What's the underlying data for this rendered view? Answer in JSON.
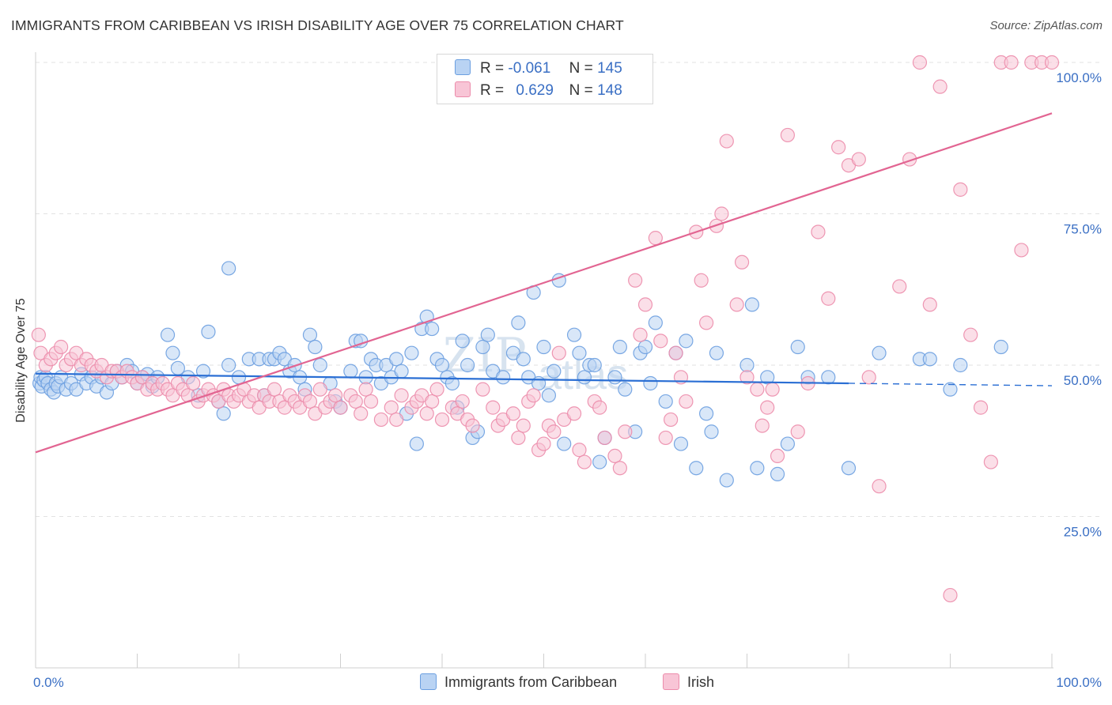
{
  "title": "IMMIGRANTS FROM CARIBBEAN VS IRISH DISABILITY AGE OVER 75 CORRELATION CHART",
  "source": "Source: ZipAtlas.com",
  "watermark": {
    "part1": "ZIP",
    "part2": "atlas"
  },
  "legend": {
    "rows": [
      {
        "r_label": "R =",
        "r_value": "-0.061",
        "n_label": "N =",
        "n_value": "145"
      },
      {
        "r_label": "R =",
        "r_value": "0.629",
        "n_label": "N =",
        "n_value": "148"
      }
    ]
  },
  "colors": {
    "blue_fill": "#b9d3f3",
    "blue_stroke": "#6b9fe0",
    "blue_line": "#2b6fd4",
    "pink_fill": "#f8c5d6",
    "pink_stroke": "#ec8cab",
    "pink_line": "#e26592",
    "grid": "#e2e2e2",
    "axis_text": "#3a6fc4"
  },
  "chart_data": {
    "type": "scatter",
    "title": "IMMIGRANTS FROM CARIBBEAN VS IRISH DISABILITY AGE OVER 75 CORRELATION CHART",
    "xlabel": "",
    "ylabel": "Disability Age Over 75",
    "xlim": [
      0,
      100
    ],
    "ylim": [
      0,
      100
    ],
    "x_tick_labels": [
      "0.0%",
      "100.0%"
    ],
    "y_ticks": [
      25,
      50,
      75,
      100
    ],
    "y_tick_labels": [
      "25.0%",
      "50.0%",
      "75.0%",
      "100.0%"
    ],
    "grid": true,
    "legend_position": "top-center",
    "series": [
      {
        "name": "Immigrants from Caribbean",
        "r": -0.061,
        "n": 145,
        "trend": {
          "x": [
            0,
            80
          ],
          "y": [
            48.6,
            47.0
          ],
          "dashed_to_x": 100,
          "dashed_end_y": 46.6
        },
        "points": [
          [
            0.4,
            47
          ],
          [
            0.5,
            48
          ],
          [
            0.6,
            46.5
          ],
          [
            0.8,
            47.5
          ],
          [
            1,
            48
          ],
          [
            1.2,
            47
          ],
          [
            1.5,
            46
          ],
          [
            1.8,
            45.5
          ],
          [
            2,
            47
          ],
          [
            2.2,
            46.5
          ],
          [
            2.5,
            48
          ],
          [
            3,
            46
          ],
          [
            3.5,
            47
          ],
          [
            4,
            46
          ],
          [
            4.5,
            48.5
          ],
          [
            5,
            47
          ],
          [
            5.5,
            48
          ],
          [
            6,
            46.5
          ],
          [
            6.5,
            48
          ],
          [
            7,
            45.5
          ],
          [
            7.5,
            47
          ],
          [
            8,
            49
          ],
          [
            8.5,
            48
          ],
          [
            9,
            50
          ],
          [
            9.5,
            49
          ],
          [
            10,
            47
          ],
          [
            10.5,
            48
          ],
          [
            11,
            48.5
          ],
          [
            11.5,
            46.5
          ],
          [
            12,
            48
          ],
          [
            13,
            55
          ],
          [
            13.5,
            52
          ],
          [
            14,
            49.5
          ],
          [
            15,
            48
          ],
          [
            16,
            45
          ],
          [
            16.5,
            49
          ],
          [
            17,
            55.5
          ],
          [
            18,
            44
          ],
          [
            18.5,
            42
          ],
          [
            19,
            50
          ],
          [
            19,
            66
          ],
          [
            20,
            48
          ],
          [
            21,
            51
          ],
          [
            22,
            51
          ],
          [
            22.5,
            45
          ],
          [
            23,
            51
          ],
          [
            23.5,
            51
          ],
          [
            24,
            52
          ],
          [
            24.5,
            51
          ],
          [
            25,
            49
          ],
          [
            25.5,
            50
          ],
          [
            26,
            48
          ],
          [
            26.5,
            46
          ],
          [
            27,
            55
          ],
          [
            27.5,
            53
          ],
          [
            28,
            50
          ],
          [
            29,
            47
          ],
          [
            29.5,
            44
          ],
          [
            30,
            43
          ],
          [
            31,
            49
          ],
          [
            31.5,
            54
          ],
          [
            32,
            54
          ],
          [
            32.5,
            48
          ],
          [
            33,
            51
          ],
          [
            33.5,
            50
          ],
          [
            34,
            47
          ],
          [
            34.5,
            50
          ],
          [
            35,
            48
          ],
          [
            35.5,
            51
          ],
          [
            36,
            49
          ],
          [
            36.5,
            42
          ],
          [
            37,
            52
          ],
          [
            37.5,
            37
          ],
          [
            38,
            56
          ],
          [
            38.5,
            58
          ],
          [
            39,
            56
          ],
          [
            39.5,
            51
          ],
          [
            40,
            50
          ],
          [
            40.5,
            48
          ],
          [
            41,
            47
          ],
          [
            41.5,
            43
          ],
          [
            42,
            54
          ],
          [
            42.5,
            50
          ],
          [
            43,
            38
          ],
          [
            43.5,
            39
          ],
          [
            44,
            53
          ],
          [
            44.5,
            55
          ],
          [
            45,
            49
          ],
          [
            46,
            48
          ],
          [
            47,
            52
          ],
          [
            47.5,
            57
          ],
          [
            48,
            51
          ],
          [
            48.5,
            48
          ],
          [
            49,
            62
          ],
          [
            49.5,
            47
          ],
          [
            50,
            53
          ],
          [
            50.5,
            45
          ],
          [
            51,
            49
          ],
          [
            51.5,
            64
          ],
          [
            52,
            37
          ],
          [
            53,
            55
          ],
          [
            53.5,
            52
          ],
          [
            54,
            48
          ],
          [
            54.5,
            50
          ],
          [
            55,
            50
          ],
          [
            55.5,
            34
          ],
          [
            56,
            38
          ],
          [
            57,
            48
          ],
          [
            57.5,
            53
          ],
          [
            58,
            46
          ],
          [
            59,
            39
          ],
          [
            59.5,
            52
          ],
          [
            60,
            53
          ],
          [
            60.5,
            47
          ],
          [
            61,
            57
          ],
          [
            62,
            44
          ],
          [
            63,
            52
          ],
          [
            63.5,
            37
          ],
          [
            64,
            54
          ],
          [
            65,
            33
          ],
          [
            66,
            42
          ],
          [
            66.5,
            39
          ],
          [
            67,
            52
          ],
          [
            68,
            31
          ],
          [
            70,
            50
          ],
          [
            70.5,
            60
          ],
          [
            71,
            33
          ],
          [
            72,
            48
          ],
          [
            73,
            32
          ],
          [
            74,
            37
          ],
          [
            75,
            53
          ],
          [
            76,
            48
          ],
          [
            78,
            48
          ],
          [
            80,
            33
          ],
          [
            83,
            52
          ],
          [
            87,
            51
          ],
          [
            88,
            51
          ],
          [
            90,
            46
          ],
          [
            91,
            50
          ],
          [
            95,
            53
          ]
        ]
      },
      {
        "name": "Irish",
        "r": 0.629,
        "n": 148,
        "trend": {
          "x": [
            0,
            100
          ],
          "y": [
            35.6,
            91.6
          ]
        },
        "points": [
          [
            0.3,
            55
          ],
          [
            0.5,
            52
          ],
          [
            1,
            50
          ],
          [
            1.5,
            51
          ],
          [
            2,
            52
          ],
          [
            2.5,
            53
          ],
          [
            3,
            50
          ],
          [
            3.5,
            51
          ],
          [
            4,
            52
          ],
          [
            4.5,
            50
          ],
          [
            5,
            51
          ],
          [
            5.5,
            50
          ],
          [
            6,
            49
          ],
          [
            6.5,
            50
          ],
          [
            7,
            48
          ],
          [
            7.5,
            49
          ],
          [
            8,
            49
          ],
          [
            8.5,
            48
          ],
          [
            9,
            49
          ],
          [
            9.5,
            48
          ],
          [
            10,
            47
          ],
          [
            10.5,
            48
          ],
          [
            11,
            46
          ],
          [
            11.5,
            47
          ],
          [
            12,
            46
          ],
          [
            12.5,
            47
          ],
          [
            13,
            46
          ],
          [
            13.5,
            45
          ],
          [
            14,
            47
          ],
          [
            14.5,
            46
          ],
          [
            15,
            45
          ],
          [
            15.5,
            47
          ],
          [
            16,
            44
          ],
          [
            16.5,
            45
          ],
          [
            17,
            46
          ],
          [
            17.5,
            45
          ],
          [
            18,
            44
          ],
          [
            18.5,
            46
          ],
          [
            19,
            45
          ],
          [
            19.5,
            44
          ],
          [
            20,
            45
          ],
          [
            20.5,
            46
          ],
          [
            21,
            44
          ],
          [
            21.5,
            45
          ],
          [
            22,
            43
          ],
          [
            22.5,
            45
          ],
          [
            23,
            44
          ],
          [
            23.5,
            46
          ],
          [
            24,
            44
          ],
          [
            24.5,
            43
          ],
          [
            25,
            45
          ],
          [
            25.5,
            44
          ],
          [
            26,
            43
          ],
          [
            26.5,
            45
          ],
          [
            27,
            44
          ],
          [
            27.5,
            42
          ],
          [
            28,
            46
          ],
          [
            28.5,
            43
          ],
          [
            29,
            44
          ],
          [
            29.5,
            45
          ],
          [
            30,
            43
          ],
          [
            31,
            45
          ],
          [
            31.5,
            44
          ],
          [
            32,
            42
          ],
          [
            32.5,
            46
          ],
          [
            33,
            44
          ],
          [
            34,
            41
          ],
          [
            35,
            43
          ],
          [
            35.5,
            41
          ],
          [
            36,
            45
          ],
          [
            37,
            43
          ],
          [
            37.5,
            44
          ],
          [
            38,
            45
          ],
          [
            38.5,
            42
          ],
          [
            39,
            44
          ],
          [
            39.5,
            46
          ],
          [
            40,
            41
          ],
          [
            41,
            43
          ],
          [
            41.5,
            42
          ],
          [
            42,
            44
          ],
          [
            42.5,
            41
          ],
          [
            43,
            40
          ],
          [
            44,
            46
          ],
          [
            45,
            43
          ],
          [
            45.5,
            40
          ],
          [
            46,
            41
          ],
          [
            47,
            42
          ],
          [
            47.5,
            38
          ],
          [
            48,
            40
          ],
          [
            48.5,
            44
          ],
          [
            49,
            45
          ],
          [
            49.5,
            36
          ],
          [
            50,
            37
          ],
          [
            50.5,
            40
          ],
          [
            51,
            39
          ],
          [
            51.5,
            52
          ],
          [
            52,
            41
          ],
          [
            53,
            42
          ],
          [
            53.5,
            36
          ],
          [
            54,
            34
          ],
          [
            55,
            44
          ],
          [
            55.5,
            43
          ],
          [
            56,
            38
          ],
          [
            57,
            35
          ],
          [
            57.5,
            33
          ],
          [
            58,
            39
          ],
          [
            59,
            64
          ],
          [
            59.5,
            55
          ],
          [
            60,
            60
          ],
          [
            61,
            71
          ],
          [
            61.5,
            54
          ],
          [
            62,
            38
          ],
          [
            62.5,
            41
          ],
          [
            63,
            52
          ],
          [
            63.5,
            48
          ],
          [
            64,
            44
          ],
          [
            65,
            72
          ],
          [
            65.5,
            64
          ],
          [
            66,
            57
          ],
          [
            67,
            73
          ],
          [
            67.5,
            75
          ],
          [
            68,
            87
          ],
          [
            69,
            60
          ],
          [
            69.5,
            67
          ],
          [
            70,
            48
          ],
          [
            71,
            46
          ],
          [
            71.5,
            40
          ],
          [
            72,
            43
          ],
          [
            72.5,
            46
          ],
          [
            73,
            35
          ],
          [
            74,
            88
          ],
          [
            75,
            39
          ],
          [
            76,
            47
          ],
          [
            77,
            72
          ],
          [
            78,
            61
          ],
          [
            79,
            86
          ],
          [
            80,
            83
          ],
          [
            81,
            84
          ],
          [
            82,
            48
          ],
          [
            83,
            30
          ],
          [
            85,
            63
          ],
          [
            86,
            84
          ],
          [
            87,
            100
          ],
          [
            88,
            60
          ],
          [
            89,
            96
          ],
          [
            90,
            12
          ],
          [
            91,
            79
          ],
          [
            92,
            55
          ],
          [
            93,
            43
          ],
          [
            94,
            34
          ],
          [
            95,
            100
          ],
          [
            96,
            100
          ],
          [
            97,
            69
          ],
          [
            98,
            100
          ],
          [
            99,
            100
          ],
          [
            100,
            100
          ]
        ]
      }
    ]
  },
  "bottom_legend": {
    "items": [
      {
        "label": "Immigrants from Caribbean"
      },
      {
        "label": "Irish"
      }
    ]
  }
}
